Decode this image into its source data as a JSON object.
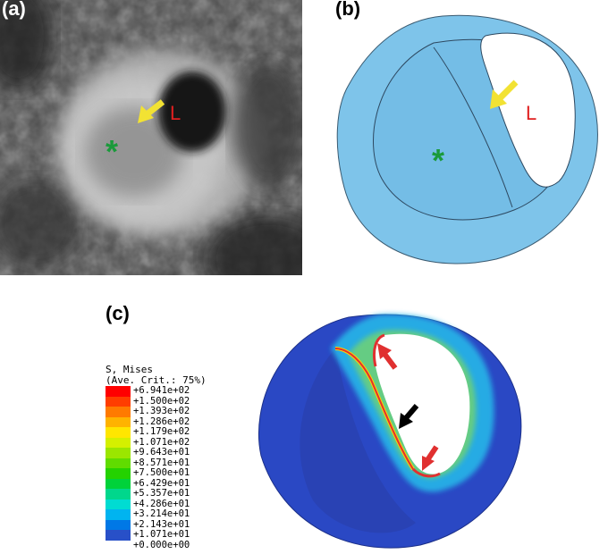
{
  "panels": {
    "a": {
      "label": "(a)",
      "lumen_label": "L",
      "asterisk": "*"
    },
    "b": {
      "label": "(b)",
      "lumen_label": "L",
      "asterisk": "*"
    },
    "c": {
      "label": "(c)"
    }
  },
  "legend": {
    "title": "S, Mises",
    "subtitle": "(Ave. Crit.: 75%)",
    "entries": [
      {
        "value": "+6.941e+02",
        "color": "#ff0000"
      },
      {
        "value": "+1.500e+02",
        "color": "#ff3d00"
      },
      {
        "value": "+1.393e+02",
        "color": "#ff7a00"
      },
      {
        "value": "+1.286e+02",
        "color": "#ffb300"
      },
      {
        "value": "+1.179e+02",
        "color": "#ffe600"
      },
      {
        "value": "+1.071e+02",
        "color": "#d4f000"
      },
      {
        "value": "+9.643e+01",
        "color": "#9be600"
      },
      {
        "value": "+8.571e+01",
        "color": "#60dc00"
      },
      {
        "value": "+7.500e+01",
        "color": "#24d200"
      },
      {
        "value": "+6.429e+01",
        "color": "#00d23a"
      },
      {
        "value": "+5.357e+01",
        "color": "#00d78c"
      },
      {
        "value": "+4.286e+01",
        "color": "#00dcd2"
      },
      {
        "value": "+3.214e+01",
        "color": "#00b4f0"
      },
      {
        "value": "+2.143e+01",
        "color": "#0078e6"
      },
      {
        "value": "+1.071e+01",
        "color": "#2850c8"
      },
      {
        "value": "+0.000e+00",
        "color": "#1e2ea0"
      }
    ]
  },
  "colors": {
    "vessel_blue": "#7ec4ea",
    "plaque_blue": "#74bde6",
    "arrow_yellow": "#f2e233",
    "label_red": "#e02020",
    "asterisk_green": "#1a9a3a",
    "fea_base": "#2a48c4",
    "stress_red": "#e03030",
    "arrow_black": "#000000"
  }
}
